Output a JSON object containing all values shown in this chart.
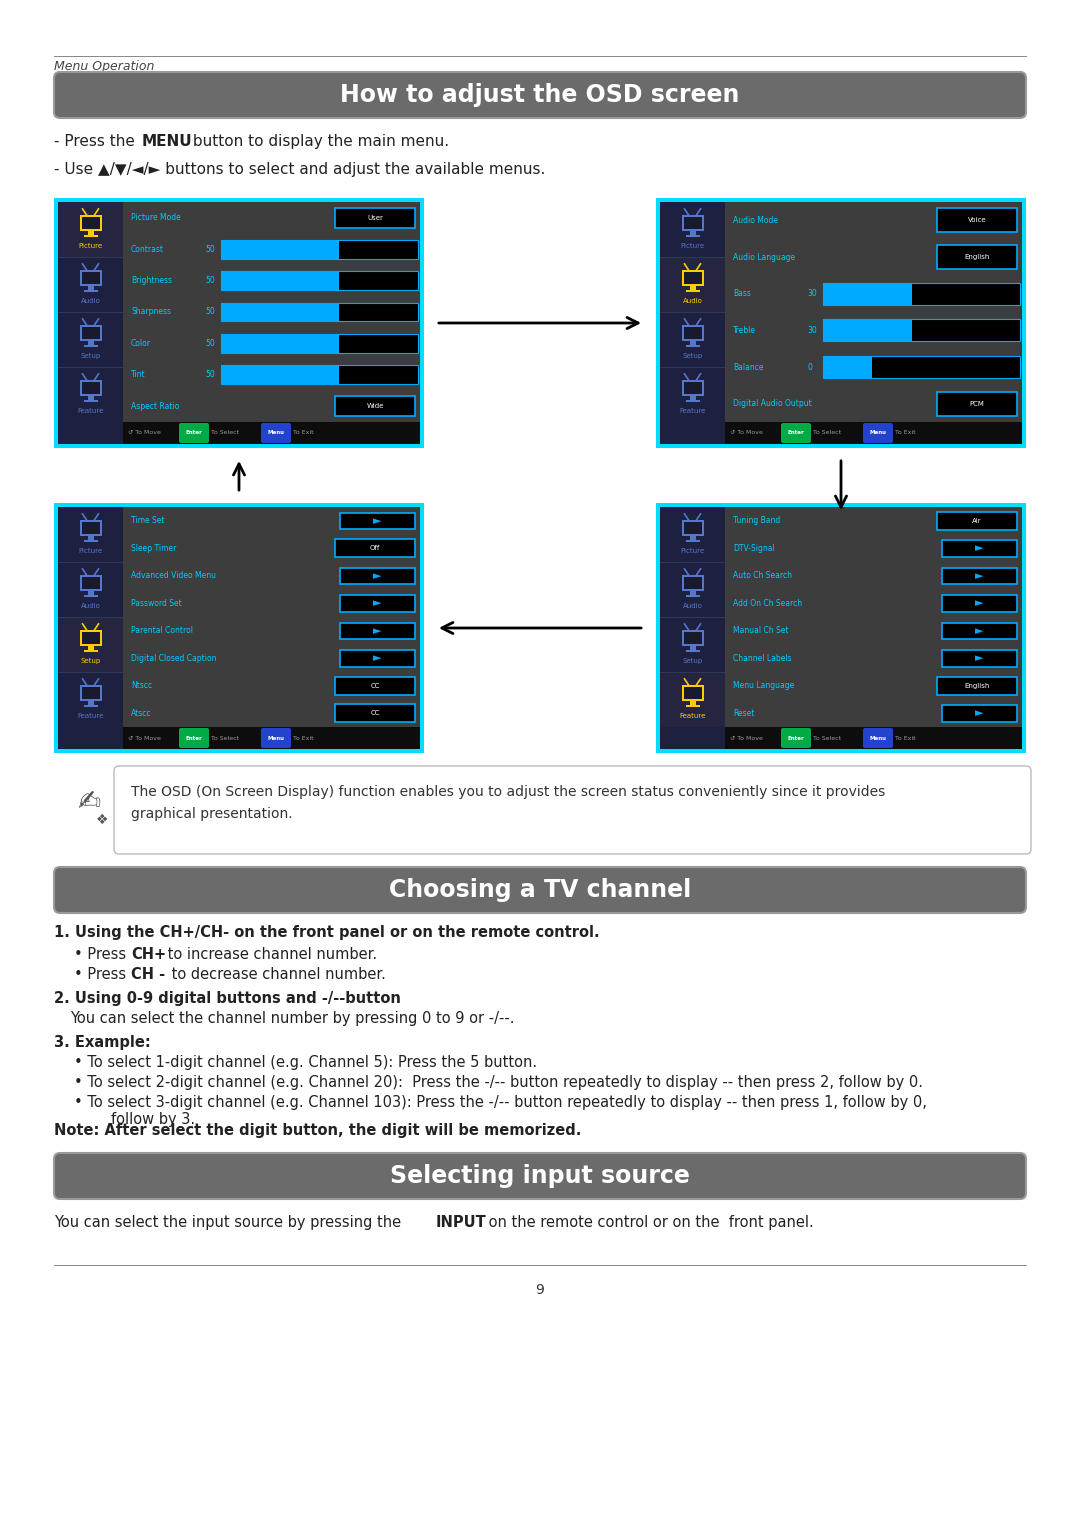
{
  "page_title_header": "Menu Operation",
  "section1_title": "How to adjust the OSD screen",
  "section2_title": "Choosing a TV channel",
  "section3_title": "Selecting input source",
  "osd_note": "The OSD (On Screen Display) function enables you to adjust the screen status conveniently since it provides\ngraphical presentation.",
  "ch1_header": "1. Using the CH+/CH- on the front panel or on the remote control.",
  "ch1_b1": "Press CH+ to increase channel number.",
  "ch1_b2": "Press CH - to decrease channel number.",
  "ch2_header": "2. Using 0-9 digital buttons and -/--button",
  "ch2_text": "You can select the channel number by pressing 0 to 9 or -/--.",
  "ch3_header": "3. Example:",
  "ch3_b1": "To select 1-digit channel (e.g. Channel 5): Press the 5 button.",
  "ch3_b2": "To select 2-digit channel (e.g. Channel 20):  Press the -/-- button repeatedly to display -- then press 2, follow by 0.",
  "ch3_b3": "To select 3-digit channel (e.g. Channel 103): Press the -/-- button repeatedly to display -- then press 1, follow by 0,\n        follow by 3.",
  "ch_note": "Note: After select the digit button, the digit will be memorized.",
  "page_number": "9",
  "bg_color": "#ffffff",
  "section_header_bg": "#6b6b6b",
  "section_header_text": "#ffffff",
  "screen_border": "#00ddff",
  "screen_bg": "#3d3d3d",
  "screen_sidebar_bg": "#1e2040",
  "screen_text_cyan": "#00ccff",
  "screen_bar_cyan": "#00aaff",
  "picture_items": [
    {
      "label": "Picture Mode",
      "value": "User"
    },
    {
      "label": "Contrast",
      "num": "50",
      "bar": true,
      "bar_fill": 0.6
    },
    {
      "label": "Brightness",
      "num": "50",
      "bar": true,
      "bar_fill": 0.6
    },
    {
      "label": "Sharpness",
      "num": "50",
      "bar": true,
      "bar_fill": 0.6
    },
    {
      "label": "Color",
      "num": "50",
      "bar": true,
      "bar_fill": 0.6
    },
    {
      "label": "Tint",
      "num": "50",
      "bar": true,
      "bar_fill": 0.6
    },
    {
      "label": "Aspect Ratio",
      "value": "Wide"
    }
  ],
  "audio_items": [
    {
      "label": "Audio Mode",
      "value": "Voice"
    },
    {
      "label": "Audio Language",
      "value": "English"
    },
    {
      "label": "Bass",
      "num": "30",
      "bar": true,
      "bar_fill": 0.45
    },
    {
      "label": "Treble",
      "num": "30",
      "bar": true,
      "bar_fill": 0.45
    },
    {
      "label": "Balance",
      "num": "0",
      "bar": true,
      "bar_fill": 0.25
    },
    {
      "label": "Digital Audio Output",
      "value": "PCM"
    }
  ],
  "setup_items": [
    {
      "label": "Time Set",
      "arrow": true
    },
    {
      "label": "Sleep Timer",
      "value": "Off"
    },
    {
      "label": "Advanced Video Menu",
      "arrow": true
    },
    {
      "label": "Password Set",
      "arrow": true
    },
    {
      "label": "Parental Control",
      "arrow": true
    },
    {
      "label": "Digital Closed Caption",
      "arrow": true
    },
    {
      "label": "Ntscc",
      "value": "CC"
    },
    {
      "label": "Atscc",
      "value": "CC"
    }
  ],
  "channel_items": [
    {
      "label": "Tuning Band",
      "value": "Air"
    },
    {
      "label": "DTV-Signal",
      "arrow": true
    },
    {
      "label": "Auto Ch Search",
      "arrow": true
    },
    {
      "label": "Add On Ch Search",
      "arrow": true
    },
    {
      "label": "Manual Ch Set",
      "arrow": true
    },
    {
      "label": "Channel Labels",
      "arrow": true
    },
    {
      "label": "Menu Language",
      "value": "English"
    },
    {
      "label": "Reset",
      "arrow": true
    }
  ],
  "sidebar_labels": [
    "Picture",
    "Audio",
    "Setup",
    "Feature"
  ],
  "screen_active_colors": [
    "#ffcc00",
    "#5577cc",
    "#5577cc",
    "#5577cc"
  ],
  "screen_inactive_color": "#5577cc"
}
